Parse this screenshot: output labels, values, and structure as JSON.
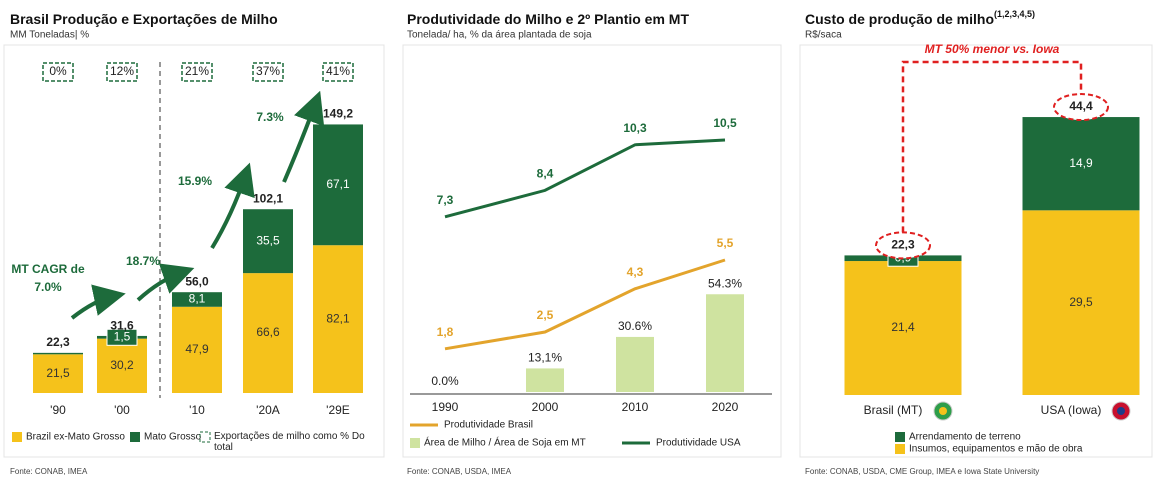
{
  "chart_data": [
    {
      "type": "bar",
      "stacked": true,
      "title": "Brasil Produção e Exportações de Milho",
      "subtitle": "MM Toneladas| %",
      "categories": [
        "'90",
        "'00",
        "'10",
        "'20A",
        "'29E"
      ],
      "series": [
        {
          "name": "Brazil ex-Mato Grosso",
          "color": "#f5c21b",
          "values": [
            21.5,
            30.2,
            47.9,
            66.6,
            82.1
          ],
          "value_labels": [
            "21,5",
            "30,2",
            "47,9",
            "66,6",
            "82,1"
          ]
        },
        {
          "name": "Mato Grosso",
          "color": "#1d6b3b",
          "values": [
            0.8,
            1.5,
            8.1,
            35.5,
            67.1
          ],
          "value_labels": [
            null,
            "1,5",
            "8,1",
            "35,5",
            "67,1"
          ]
        }
      ],
      "totals": [
        22.3,
        31.6,
        56.0,
        102.1,
        149.2
      ],
      "total_labels": [
        "22,3",
        "31,6",
        "56,0",
        "102,1",
        "149,2"
      ],
      "export_share": {
        "name": "Exportações de milho como % Do total",
        "values": [
          0,
          12,
          21,
          37,
          41
        ],
        "value_labels": [
          "0%",
          "12%",
          "21%",
          "37%",
          "41%"
        ]
      },
      "cagr_label": "MT CAGR de",
      "cagr": [
        7.0,
        18.7,
        15.9,
        7.3
      ],
      "cagr_labels": [
        "7.0%",
        "18.7%",
        "15.9%",
        "7.3%"
      ],
      "ylim": [
        0,
        160
      ],
      "source": "Fonte: CONAB, IMEA"
    },
    {
      "type": "combo",
      "title": "Produtividade do Milho e 2º Plantio em MT",
      "subtitle": "Tonelada/ ha, % da área plantada de soja",
      "categories": [
        "1990",
        "2000",
        "2010",
        "2020"
      ],
      "series": [
        {
          "name": "Produtividade Brasil",
          "type": "line",
          "color": "#e3a42c",
          "values": [
            1.8,
            2.5,
            4.3,
            5.5
          ],
          "value_labels": [
            "1,8",
            "2,5",
            "4,3",
            "5,5"
          ]
        },
        {
          "name": "Área de Milho / Área de Soja em MT",
          "type": "bar",
          "axis": "y2",
          "color": "#cfe3a0",
          "values": [
            0.0,
            13.1,
            30.6,
            54.3
          ],
          "value_labels": [
            "0.0%",
            "13,1%",
            "30.6%",
            "54.3%"
          ]
        },
        {
          "name": "Produtividade USA",
          "type": "line",
          "color": "#1d6b3b",
          "values": [
            7.3,
            8.4,
            10.3,
            10.5
          ],
          "value_labels": [
            "7,3",
            "8,4",
            "10,3",
            "10,5"
          ]
        }
      ],
      "ylim": [
        0,
        12
      ],
      "y2lim": [
        0,
        160
      ],
      "source": "Fonte: CONAB, USDA, IMEA"
    },
    {
      "type": "bar",
      "stacked": true,
      "title": "Custo de produção de milho",
      "title_note": "(1,2,3,4,5)",
      "subtitle": "R$/saca",
      "categories": [
        "Brasil (MT)",
        "USA (Iowa)"
      ],
      "series": [
        {
          "name": "Insumos, equipamentos e mão de obra",
          "color": "#f5c21b",
          "values": [
            21.4,
            29.5
          ],
          "value_labels": [
            "21,4",
            "29,5"
          ]
        },
        {
          "name": "Arrendamento de terreno",
          "color": "#1d6b3b",
          "values": [
            0.9,
            14.9
          ],
          "value_labels": [
            "0,9",
            "14,9"
          ]
        }
      ],
      "totals": [
        22.3,
        44.4
      ],
      "total_labels": [
        "22,3",
        "44,4"
      ],
      "annotation": "MT 50% menor vs. Iowa",
      "ylim": [
        0,
        50
      ],
      "source": "Fonte: CONAB, USDA, CME Group, IMEA e Iowa State University"
    }
  ]
}
